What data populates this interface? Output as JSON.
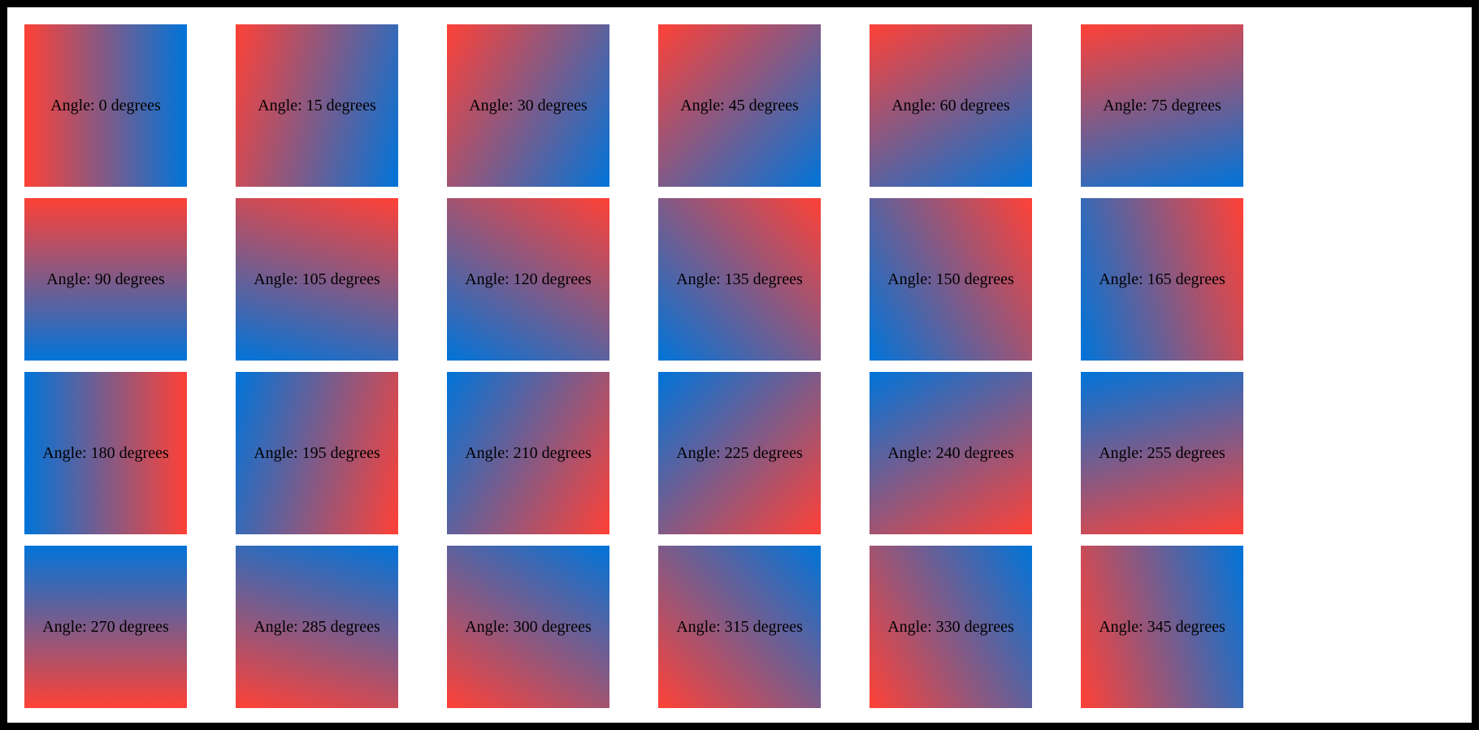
{
  "colors": {
    "gradient_start": "#ff4136",
    "gradient_end": "#0074d9",
    "frame_border": "#000000",
    "page_background": "#ffffff",
    "label_text": "#000000"
  },
  "grid": {
    "columns": 6,
    "rows": 4,
    "angle_step_degrees": 15,
    "items": [
      {
        "angle": 0,
        "label": "Angle: 0 degrees"
      },
      {
        "angle": 15,
        "label": "Angle: 15 degrees"
      },
      {
        "angle": 30,
        "label": "Angle: 30 degrees"
      },
      {
        "angle": 45,
        "label": "Angle: 45 degrees"
      },
      {
        "angle": 60,
        "label": "Angle: 60 degrees"
      },
      {
        "angle": 75,
        "label": "Angle: 75 degrees"
      },
      {
        "angle": 90,
        "label": "Angle: 90 degrees"
      },
      {
        "angle": 105,
        "label": "Angle: 105 degrees"
      },
      {
        "angle": 120,
        "label": "Angle: 120 degrees"
      },
      {
        "angle": 135,
        "label": "Angle: 135 degrees"
      },
      {
        "angle": 150,
        "label": "Angle: 150 degrees"
      },
      {
        "angle": 165,
        "label": "Angle: 165 degrees"
      },
      {
        "angle": 180,
        "label": "Angle: 180 degrees"
      },
      {
        "angle": 195,
        "label": "Angle: 195 degrees"
      },
      {
        "angle": 210,
        "label": "Angle: 210 degrees"
      },
      {
        "angle": 225,
        "label": "Angle: 225 degrees"
      },
      {
        "angle": 240,
        "label": "Angle: 240 degrees"
      },
      {
        "angle": 255,
        "label": "Angle: 255 degrees"
      },
      {
        "angle": 270,
        "label": "Angle: 270 degrees"
      },
      {
        "angle": 285,
        "label": "Angle: 285 degrees"
      },
      {
        "angle": 300,
        "label": "Angle: 300 degrees"
      },
      {
        "angle": 315,
        "label": "Angle: 315 degrees"
      },
      {
        "angle": 330,
        "label": "Angle: 330 degrees"
      },
      {
        "angle": 345,
        "label": "Angle: 345 degrees"
      }
    ]
  }
}
